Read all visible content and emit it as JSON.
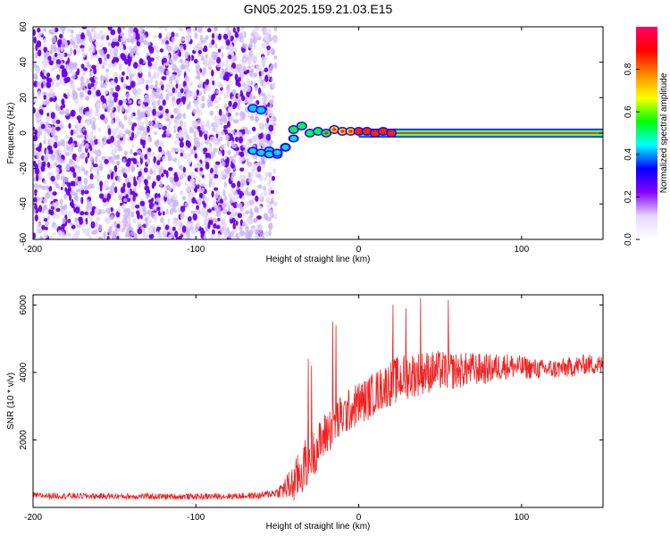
{
  "title": "GN05.2025.159.21.03.E15",
  "colors": {
    "signal_line": "#ff0000",
    "snr_line": "#ee2222",
    "scatter_strong": "#6a00e8",
    "scatter_weak": "#c9b3f5"
  },
  "chart_data": [
    {
      "type": "heatmap",
      "xlabel": "Height of straight line (km)",
      "ylabel": "Frequency (Hz)",
      "xlim": [
        -200,
        150
      ],
      "ylim": [
        -60,
        60
      ],
      "xticks": [
        "-200",
        "-100",
        "0",
        "100"
      ],
      "yticks": [
        "60",
        "40",
        "20",
        "0",
        "-20",
        "-40",
        "-60"
      ],
      "colorbar": {
        "label": "Normalized spectral amplitude",
        "range": [
          0.0,
          1.0
        ],
        "ticks": [
          "0.0",
          "0.2",
          "0.4",
          "0.6",
          "0.8"
        ],
        "colors": [
          "#ffffff",
          "#e6d6ff",
          "#8800ff",
          "#0000ff",
          "#00ffff",
          "#00ff00",
          "#ffff00",
          "#ff8800",
          "#ff0000",
          "#ff0066"
        ]
      },
      "noise_region_x": [
        -200,
        -55
      ],
      "signal_track": {
        "x": [
          -65,
          -60,
          -55,
          -50,
          -45,
          -40,
          -35,
          -30,
          -25,
          -20,
          -15,
          -10,
          -5,
          0,
          5,
          10,
          15,
          20,
          50,
          100,
          150
        ],
        "freq": [
          14,
          13,
          -10,
          -12,
          -8,
          2,
          4,
          0,
          1,
          0,
          2,
          1,
          1,
          1,
          1,
          0,
          1,
          0,
          0,
          0,
          0
        ],
        "freq_lower_branch": [
          -10,
          -11,
          -12,
          -11,
          -8,
          -3
        ],
        "amplitude": [
          0.45,
          0.45,
          0.45,
          0.45,
          0.4,
          0.5,
          0.55,
          0.55,
          0.6,
          0.65,
          0.7,
          0.75,
          0.8,
          0.85,
          0.85,
          0.9,
          0.9,
          0.9,
          0.9,
          0.9,
          0.9
        ]
      }
    },
    {
      "type": "line",
      "xlabel": "Height of straight line (km)",
      "ylabel": "SNR (10 * v/v)",
      "xlim": [
        -200,
        150
      ],
      "ylim": [
        0,
        6300
      ],
      "xticks": [
        "-200",
        "-100",
        "0",
        "100"
      ],
      "yticks": [
        "6000",
        "4000",
        "2000"
      ],
      "series": [
        {
          "x": [
            -200,
            -150,
            -100,
            -60,
            -50,
            -40,
            -35,
            -30,
            -25,
            -20,
            -15,
            -10,
            -5,
            0,
            5,
            10,
            15,
            20,
            25,
            30,
            40,
            50,
            60,
            70,
            80,
            90,
            100,
            110,
            120,
            130,
            140,
            150
          ],
          "baseline": [
            350,
            330,
            320,
            350,
            450,
            700,
            1100,
            1500,
            1800,
            2200,
            2500,
            2700,
            2900,
            3100,
            3200,
            3400,
            3550,
            3700,
            3800,
            3900,
            4000,
            4050,
            4050,
            4100,
            4100,
            4200,
            4150,
            4100,
            4100,
            4150,
            4250,
            4200
          ],
          "spread": [
            90,
            90,
            90,
            100,
            150,
            600,
            800,
            700,
            700,
            700,
            700,
            650,
            650,
            650,
            650,
            650,
            650,
            700,
            700,
            700,
            650,
            600,
            550,
            500,
            450,
            400,
            350,
            300,
            300,
            300,
            300,
            300
          ],
          "peaks": [
            {
              "x": -31,
              "y": 4400
            },
            {
              "x": -29,
              "y": 4200
            },
            {
              "x": -16,
              "y": 5500
            },
            {
              "x": -14,
              "y": 5400
            },
            {
              "x": 21,
              "y": 6000
            },
            {
              "x": 29,
              "y": 5900
            },
            {
              "x": 38,
              "y": 6200
            },
            {
              "x": 55,
              "y": 6150
            }
          ]
        }
      ]
    }
  ]
}
